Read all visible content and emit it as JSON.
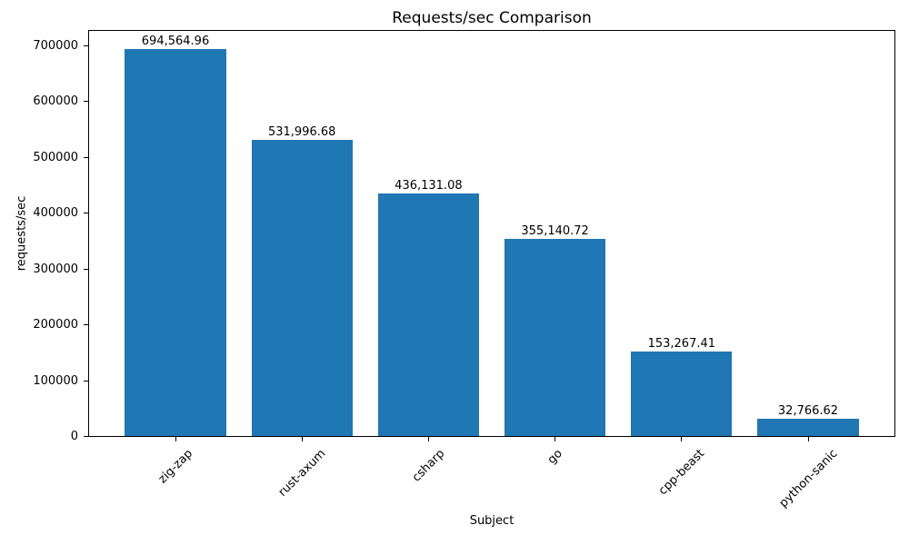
{
  "chart_data": {
    "type": "bar",
    "title": "Requests/sec Comparison",
    "xlabel": "Subject",
    "ylabel": "requests/sec",
    "categories": [
      "zig-zap",
      "rust-axum",
      "csharp",
      "go",
      "cpp-beast",
      "python-sanic"
    ],
    "values": [
      694564.96,
      531996.68,
      436131.08,
      355140.72,
      153267.41,
      32766.62
    ],
    "value_labels": [
      "694,564.96",
      "531,996.68",
      "436,131.08",
      "355,140.72",
      "153,267.41",
      "32,766.62"
    ],
    "yticks": [
      {
        "value": 0,
        "label": "0"
      },
      {
        "value": 100000,
        "label": "100000"
      },
      {
        "value": 200000,
        "label": "200000"
      },
      {
        "value": 300000,
        "label": "300000"
      },
      {
        "value": 400000,
        "label": "400000"
      },
      {
        "value": 500000,
        "label": "500000"
      },
      {
        "value": 600000,
        "label": "600000"
      },
      {
        "value": 700000,
        "label": "700000"
      }
    ],
    "ylim": [
      0,
      729293
    ],
    "bar_width_fraction": 0.8,
    "x_margin_fraction": 0.05,
    "xtick_rotation_deg": 45,
    "bar_color": "#1f77b4",
    "text_color": "#000000",
    "spine_color": "#000000",
    "background_color": "#ffffff",
    "grid": false,
    "legend": null
  }
}
